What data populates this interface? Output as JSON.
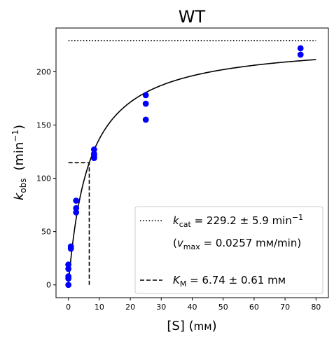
{
  "chart_data": {
    "type": "scatter",
    "title": "WT",
    "xlabel": {
      "main": "[S] (",
      "unit": "mм",
      "close": ")"
    },
    "ylabel": {
      "k": "k",
      "sub": "obs",
      "unit": "(min",
      "sup": "−1",
      "close": ")"
    },
    "xlim": [
      -4,
      84
    ],
    "ylim": [
      -12,
      241
    ],
    "xticks": [
      0,
      10,
      20,
      30,
      40,
      50,
      60,
      70,
      80
    ],
    "yticks": [
      0,
      50,
      100,
      150,
      200
    ],
    "grid": false,
    "legend_position": "lower-right",
    "colors": {
      "points": "#0000ff",
      "fit": "#000000",
      "reference": "#000000"
    },
    "points": {
      "x": [
        0,
        0,
        0,
        0,
        0,
        0,
        0.8,
        0.8,
        2.5,
        2.5,
        2.5,
        8.3,
        8.3,
        8.3,
        8.3,
        25,
        25,
        25,
        75,
        75
      ],
      "y": [
        0,
        6,
        8,
        15,
        19,
        19,
        34,
        36,
        68,
        72,
        79,
        119,
        121,
        123,
        127,
        155,
        170,
        178,
        216,
        222
      ]
    },
    "fit": {
      "model": "michaelis-menten",
      "kcat": 229.2,
      "km": 6.74,
      "x_range": [
        0,
        80
      ]
    },
    "kcat_line": {
      "y": 229.2,
      "x_range": [
        0,
        80
      ]
    },
    "km_lines": {
      "km": 6.74,
      "half_vmax": 114.6,
      "x_start": 0,
      "y_start": 0
    },
    "legend": {
      "kcat": {
        "k": "k",
        "sub": "cat",
        "text": " = 229.2 ± 5.9 min",
        "sup": "−1"
      },
      "vmax": {
        "open": "(",
        "v": "v",
        "sub": "max",
        "text": " = 0.0257 mм/min)"
      },
      "km": {
        "k": "K",
        "sub": "M",
        "text": " = 6.74 ± 0.61 mм"
      }
    }
  }
}
